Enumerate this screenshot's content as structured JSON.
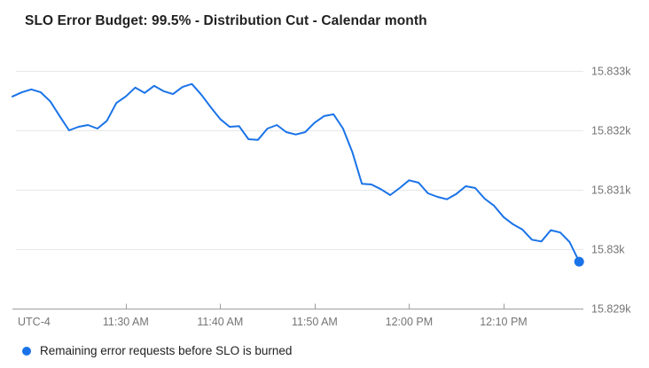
{
  "title": "SLO Error Budget: 99.5% - Distribution Cut - Calendar month",
  "legend": {
    "label": "Remaining error requests before SLO is burned"
  },
  "colors": {
    "series": "#1a73e8",
    "grid": "#e8e8e8",
    "axis": "#9e9e9e",
    "axis_text": "#757575",
    "title_text": "#212121"
  },
  "chart_data": {
    "type": "line",
    "title": "SLO Error Budget: 99.5% - Distribution Cut - Calendar month",
    "xlabel": "",
    "ylabel": "",
    "grid": "horizontal",
    "legend_position": "bottom-left",
    "x_axis_note": "UTC-4",
    "x_interval_minutes": 1,
    "ylim": [
      15829,
      15833.25
    ],
    "y_ticks": [
      {
        "value": 15833,
        "label": "15.833k"
      },
      {
        "value": 15832,
        "label": "15.832k"
      },
      {
        "value": 15831,
        "label": "15.831k"
      },
      {
        "value": 15830,
        "label": "15.83k"
      },
      {
        "value": 15829,
        "label": "15.829k"
      }
    ],
    "x_ticks": [
      {
        "index": 12,
        "label": "11:30 AM"
      },
      {
        "index": 22,
        "label": "11:40 AM"
      },
      {
        "index": 32,
        "label": "11:50 AM"
      },
      {
        "index": 42,
        "label": "12:00 PM"
      },
      {
        "index": 52,
        "label": "12:10 PM"
      }
    ],
    "series": [
      {
        "name": "Remaining error requests before SLO is burned",
        "color": "#1a73e8",
        "end_marker": true,
        "values": [
          15832.57,
          15832.64,
          15832.69,
          15832.64,
          15832.49,
          15832.24,
          15832.0,
          15832.06,
          15832.09,
          15832.03,
          15832.16,
          15832.46,
          15832.57,
          15832.72,
          15832.63,
          15832.75,
          15832.66,
          15832.61,
          15832.73,
          15832.78,
          15832.6,
          15832.39,
          15832.19,
          15832.06,
          15832.07,
          15831.85,
          15831.84,
          15832.03,
          15832.09,
          15831.97,
          15831.93,
          15831.97,
          15832.13,
          15832.24,
          15832.27,
          15832.03,
          15831.63,
          15831.1,
          15831.09,
          15831.01,
          15830.91,
          15831.03,
          15831.16,
          15831.12,
          15830.94,
          15830.88,
          15830.84,
          15830.93,
          15831.06,
          15831.03,
          15830.85,
          15830.73,
          15830.54,
          15830.42,
          15830.33,
          15830.16,
          15830.13,
          15830.32,
          15830.28,
          15830.12,
          15829.79
        ]
      }
    ]
  }
}
